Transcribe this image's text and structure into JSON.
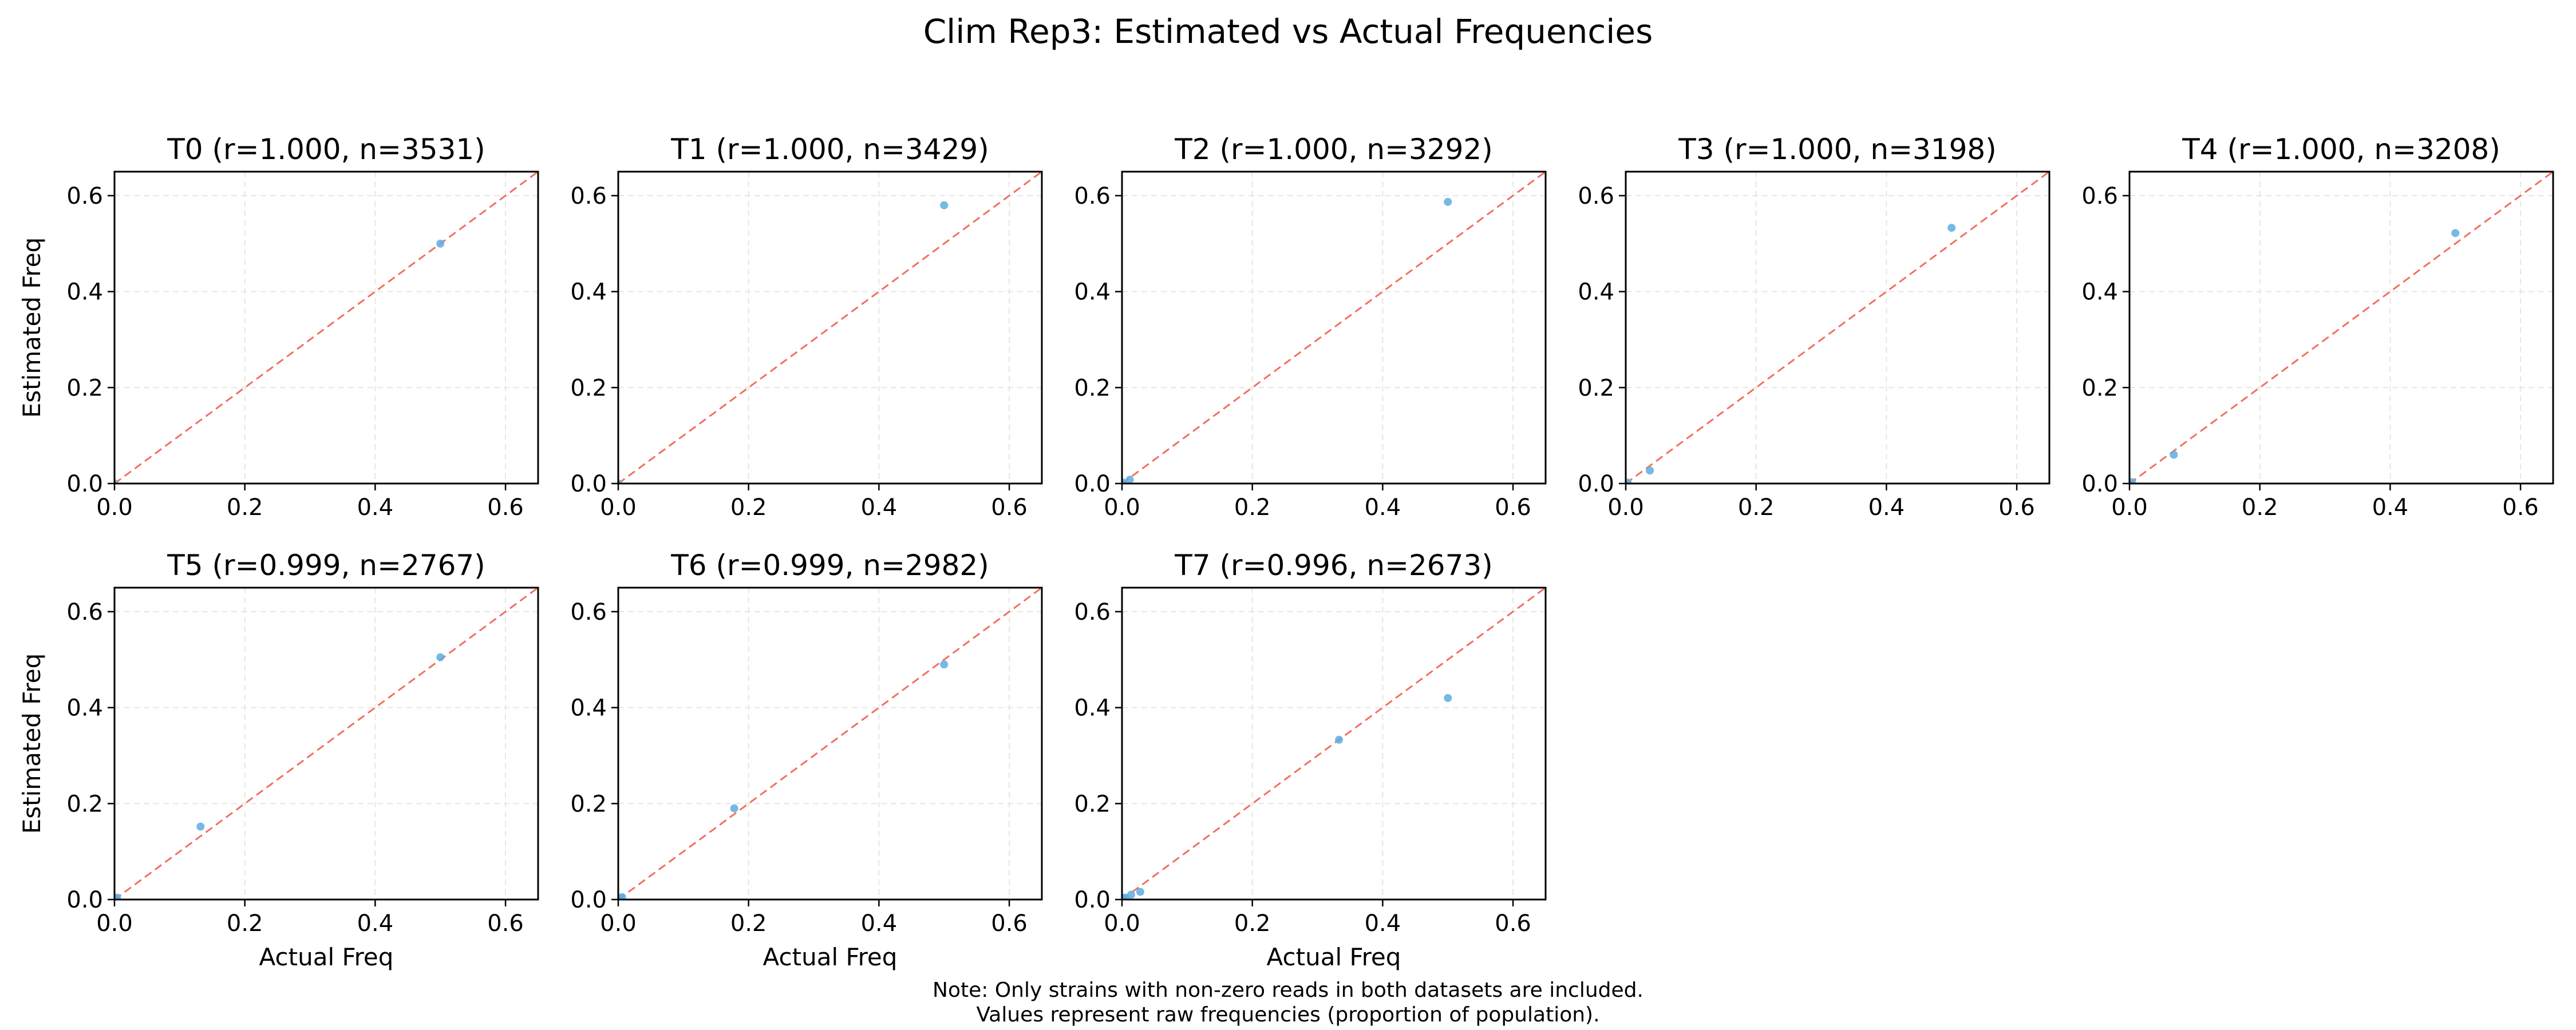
{
  "figure": {
    "title": "Clim Rep3: Estimated vs Actual Frequencies",
    "note_line1": "Note: Only strains with non-zero reads in both datasets are included.",
    "note_line2": "Values represent raw frequencies (proportion of population)."
  },
  "chart_data": [
    {
      "type": "scatter",
      "title": "T0 (r=1.000, n=3531)",
      "xlabel": "",
      "ylabel": "Estimated Freq",
      "xlim": [
        0,
        0.65
      ],
      "ylim": [
        0,
        0.65
      ],
      "xticks": [
        "0.0",
        "0.2",
        "0.4",
        "0.6"
      ],
      "yticks": [
        "0.0",
        "0.2",
        "0.4",
        "0.6"
      ],
      "grid": true,
      "reference_line": "y = x",
      "points": [
        {
          "x": 0.5,
          "y": 0.5
        },
        {
          "x": 0.0,
          "y": 0.0
        }
      ]
    },
    {
      "type": "scatter",
      "title": "T1 (r=1.000, n=3429)",
      "xlabel": "",
      "ylabel": "",
      "xlim": [
        0,
        0.65
      ],
      "ylim": [
        0,
        0.65
      ],
      "xticks": [
        "0.0",
        "0.2",
        "0.4",
        "0.6"
      ],
      "yticks": [
        "0.0",
        "0.2",
        "0.4",
        "0.6"
      ],
      "grid": true,
      "reference_line": "y = x",
      "points": [
        {
          "x": 0.5,
          "y": 0.58
        },
        {
          "x": 0.0,
          "y": 0.0
        }
      ]
    },
    {
      "type": "scatter",
      "title": "T2 (r=1.000, n=3292)",
      "xlabel": "",
      "ylabel": "",
      "xlim": [
        0,
        0.65
      ],
      "ylim": [
        0,
        0.65
      ],
      "xticks": [
        "0.0",
        "0.2",
        "0.4",
        "0.6"
      ],
      "yticks": [
        "0.0",
        "0.2",
        "0.4",
        "0.6"
      ],
      "grid": true,
      "reference_line": "y = x",
      "points": [
        {
          "x": 0.5,
          "y": 0.587
        },
        {
          "x": 0.012,
          "y": 0.008
        },
        {
          "x": 0.002,
          "y": 0.002
        }
      ]
    },
    {
      "type": "scatter",
      "title": "T3 (r=1.000, n=3198)",
      "xlabel": "",
      "ylabel": "",
      "xlim": [
        0,
        0.65
      ],
      "ylim": [
        0,
        0.65
      ],
      "xticks": [
        "0.0",
        "0.2",
        "0.4",
        "0.6"
      ],
      "yticks": [
        "0.0",
        "0.2",
        "0.4",
        "0.6"
      ],
      "grid": true,
      "reference_line": "y = x",
      "points": [
        {
          "x": 0.5,
          "y": 0.533
        },
        {
          "x": 0.037,
          "y": 0.027
        },
        {
          "x": 0.003,
          "y": 0.002
        }
      ]
    },
    {
      "type": "scatter",
      "title": "T4 (r=1.000, n=3208)",
      "xlabel": "",
      "ylabel": "",
      "xlim": [
        0,
        0.65
      ],
      "ylim": [
        0,
        0.65
      ],
      "xticks": [
        "0.0",
        "0.2",
        "0.4",
        "0.6"
      ],
      "yticks": [
        "0.0",
        "0.2",
        "0.4",
        "0.6"
      ],
      "grid": true,
      "reference_line": "y = x",
      "points": [
        {
          "x": 0.5,
          "y": 0.522
        },
        {
          "x": 0.068,
          "y": 0.06
        },
        {
          "x": 0.004,
          "y": 0.003
        }
      ]
    },
    {
      "type": "scatter",
      "title": "T5 (r=0.999, n=2767)",
      "xlabel": "Actual Freq",
      "ylabel": "Estimated Freq",
      "xlim": [
        0,
        0.65
      ],
      "ylim": [
        0,
        0.65
      ],
      "xticks": [
        "0.0",
        "0.2",
        "0.4",
        "0.6"
      ],
      "yticks": [
        "0.0",
        "0.2",
        "0.4",
        "0.6"
      ],
      "grid": true,
      "reference_line": "y = x",
      "points": [
        {
          "x": 0.5,
          "y": 0.505
        },
        {
          "x": 0.132,
          "y": 0.152
        },
        {
          "x": 0.004,
          "y": 0.004
        },
        {
          "x": 0.002,
          "y": 0.002
        }
      ]
    },
    {
      "type": "scatter",
      "title": "T6 (r=0.999, n=2982)",
      "xlabel": "Actual Freq",
      "ylabel": "",
      "xlim": [
        0,
        0.65
      ],
      "ylim": [
        0,
        0.65
      ],
      "xticks": [
        "0.0",
        "0.2",
        "0.4",
        "0.6"
      ],
      "yticks": [
        "0.0",
        "0.2",
        "0.4",
        "0.6"
      ],
      "grid": true,
      "reference_line": "y = x",
      "points": [
        {
          "x": 0.5,
          "y": 0.49
        },
        {
          "x": 0.178,
          "y": 0.19
        },
        {
          "x": 0.006,
          "y": 0.005
        },
        {
          "x": 0.003,
          "y": 0.003
        }
      ]
    },
    {
      "type": "scatter",
      "title": "T7 (r=0.996, n=2673)",
      "xlabel": "Actual Freq",
      "ylabel": "",
      "xlim": [
        0,
        0.65
      ],
      "ylim": [
        0,
        0.65
      ],
      "xticks": [
        "0.0",
        "0.2",
        "0.4",
        "0.6"
      ],
      "yticks": [
        "0.0",
        "0.2",
        "0.4",
        "0.6"
      ],
      "grid": true,
      "reference_line": "y = x",
      "points": [
        {
          "x": 0.5,
          "y": 0.42
        },
        {
          "x": 0.333,
          "y": 0.333
        },
        {
          "x": 0.028,
          "y": 0.016
        },
        {
          "x": 0.014,
          "y": 0.01
        },
        {
          "x": 0.005,
          "y": 0.004
        },
        {
          "x": 0.002,
          "y": 0.002
        }
      ]
    }
  ],
  "colors": {
    "point": "#5dade2",
    "reference_line": "#f1705f",
    "grid": "#e6e6e6",
    "axes": "#000000"
  }
}
